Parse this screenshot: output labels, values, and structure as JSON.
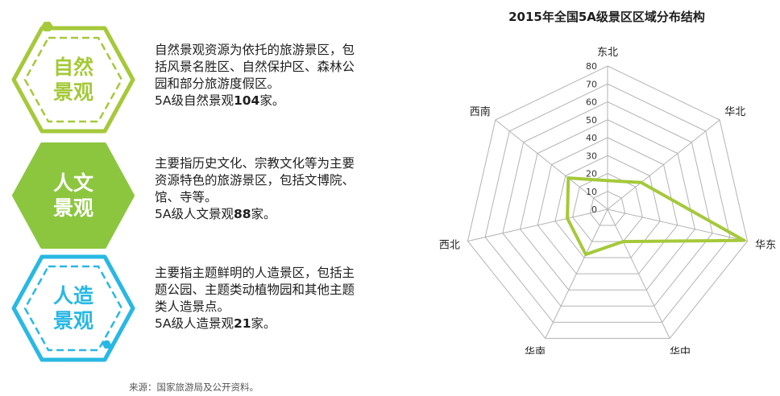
{
  "categories": [
    {
      "id": "natural",
      "title_line1": "自然",
      "title_line2": "景观",
      "color": "#a5c93a",
      "style": "outline",
      "desc_lines": [
        "自然景观资源为依托的旅游景区，包",
        "括风景名胜区、自然保护区、森林公",
        "园和部分旅游度假区。"
      ],
      "count_prefix": "5A级自然景观",
      "count": "104",
      "count_suffix": "家。"
    },
    {
      "id": "cultural",
      "title_line1": "人文",
      "title_line2": "景观",
      "color": "#8cc63f",
      "style": "filled",
      "desc_lines": [
        "主要指历史文化、宗教文化等为主要",
        "资源特色的旅游景区，包括文博院、",
        "馆、寺等。"
      ],
      "count_prefix": "5A级人文景观",
      "count": "88",
      "count_suffix": "家。"
    },
    {
      "id": "manmade",
      "title_line1": "人造",
      "title_line2": "景观",
      "color": "#29b8e3",
      "style": "outline",
      "desc_lines": [
        "主要指主题鲜明的人造景区，包括主",
        "题公园、主题类动植物园和其他主题",
        "类人造景点。"
      ],
      "count_prefix": "5A级人造景观",
      "count": "21",
      "count_suffix": "家。"
    }
  ],
  "source": "来源：国家旅游局及公开资料。",
  "chart_data": {
    "type": "radar",
    "title": "2015年全国5A级景区区域分布结构",
    "categories": [
      "东北",
      "华北",
      "华东",
      "华中",
      "华南",
      "西北",
      "西南"
    ],
    "series": [
      {
        "values": [
          16,
          24,
          78,
          20,
          28,
          23,
          28
        ],
        "color": "#a5c93a"
      }
    ],
    "rlim": [
      0,
      80
    ],
    "ticks": [
      0,
      10,
      20,
      30,
      40,
      50,
      60,
      70,
      80
    ],
    "grid": true,
    "grid_color": "#b3b3b3"
  }
}
